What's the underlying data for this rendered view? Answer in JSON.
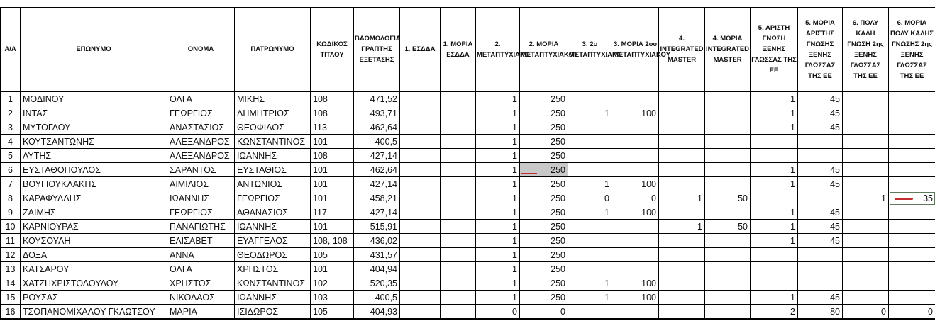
{
  "headers": [
    "Α/Α",
    "ΕΠΩΝΥΜΟ",
    "ΟΝΟΜΑ",
    "ΠΑΤΡΩΝΥΜΟ",
    "ΚΩΔΙΚΟΣ ΤΙΤΛΟΥ",
    "ΒΑΘΜΟΛΟΓΙΑ ΓΡΑΠΤΗΣ ΕΞΕΤΑΣΗΣ",
    "1. ΕΣΔΔΑ",
    "1. ΜΟΡΙΑ ΕΣΔΔΑ",
    "2. ΜΕΤΑΠΤΥΧΙΑΚΟ",
    "2. ΜΟΡΙΑ ΜΕΤΑΠΤΥΧΙΑΚΟΥ",
    "3. 2ο ΜΕΤΑΠΤΥΧΙΑΚΟ",
    "3. ΜΟΡΙΑ 2ου ΜΕΤΑΠΤΥΧΙΑΚΟΥ",
    "4. INTEGRATED MASTER",
    "4. ΜΟΡΙΑ INTEGRATED MASTER",
    "5. ΑΡΙΣΤΗ ΓΝΩΣΗ ΞΕΝΗΣ ΓΛΩΣΣΑΣ ΤΗΣ ΕΕ",
    "5. ΜΟΡΙΑ ΑΡΙΣΤΗΣ ΓΝΩΣΗΣ ΞΕΝΗΣ ΓΛΩΣΣΑΣ ΤΗΣ ΕΕ",
    "6. ΠΟΛΥ ΚΑΛΗ ΓΝΩΣΗ 2ης ΞΕΝΗΣ ΓΛΩΣΣΑΣ ΤΗΣ ΕΕ",
    "6. ΜΟΡΙΑ ΠΟΛΥ ΚΑΛΗΣ ΓΝΩΣΗΣ 2ης ΞΕΝΗΣ ΓΛΩΣΣΑΣ ΤΗΣ ΕΕ"
  ],
  "accent_colors": {
    "red_mark": "#c0302f",
    "highlight_cell": "#c8c8c8"
  },
  "rows": [
    [
      "1",
      "ΜΟΔΙΝΟΥ",
      "ΟΛΓΑ",
      "ΜΙΚΗΣ",
      "108",
      "471,52",
      "",
      "",
      "1",
      "250",
      "",
      "",
      "",
      "",
      "1",
      "45",
      "",
      ""
    ],
    [
      "2",
      "ΙΝΤΑΣ",
      "ΓΕΩΡΓΙΟΣ",
      "ΔΗΜΗΤΡΙΟΣ",
      "108",
      "493,71",
      "",
      "",
      "1",
      "250",
      "1",
      "100",
      "",
      "",
      "1",
      "45",
      "",
      ""
    ],
    [
      "3",
      "ΜΥΤΟΓΛΟΥ",
      "ΑΝΑΣΤΑΣΙΟΣ",
      "ΘΕΟΦΙΛΟΣ",
      "113",
      "462,64",
      "",
      "",
      "1",
      "250",
      "",
      "",
      "",
      "",
      "1",
      "45",
      "",
      ""
    ],
    [
      "4",
      "ΚΟΥΤΣΑΝΤΩΝΗΣ",
      "ΑΛΕΞΑΝΔΡΟΣ",
      "ΚΩΝΣΤΑΝΤΙΝΟΣ",
      "101",
      "400,5",
      "",
      "",
      "1",
      "250",
      "",
      "",
      "",
      "",
      "",
      "",
      "",
      ""
    ],
    [
      "5",
      "ΛΥΤΗΣ",
      "ΑΛΕΞΑΝΔΡΟΣ",
      "ΙΩΑΝΝΗΣ",
      "108",
      "427,14",
      "",
      "",
      "1",
      "250",
      "",
      "",
      "",
      "",
      "",
      "",
      "",
      ""
    ],
    [
      "6",
      "ΕΥΣΤΑΘΟΠΟΥΛΟΣ",
      "ΣΑΡΑΝΤΟΣ",
      "ΕΥΣΤΑΘΙΟΣ",
      "101",
      "462,64",
      "",
      "",
      "1",
      "250",
      "",
      "",
      "",
      "",
      "1",
      "45",
      "",
      ""
    ],
    [
      "7",
      "ΒΟΥΓΙΟΥΚΛΑΚΗΣ",
      "ΑΙΜΙΛΙΟΣ",
      "ΑΝΤΩΝΙΟΣ",
      "101",
      "427,14",
      "",
      "",
      "1",
      "250",
      "1",
      "100",
      "",
      "",
      "1",
      "45",
      "",
      ""
    ],
    [
      "8",
      "ΚΑΡΑΦΥΛΛΗΣ",
      "ΙΩΑΝΝΗΣ",
      "ΓΕΩΡΓΙΟΣ",
      "101",
      "458,21",
      "",
      "",
      "1",
      "250",
      "0",
      "0",
      "1",
      "50",
      "",
      "",
      "1",
      "35"
    ],
    [
      "9",
      "ΖΑΙΜΗΣ",
      "ΓΕΩΡΓΙΟΣ",
      "ΑΘΑΝΑΣΙΟΣ",
      "117",
      "427,14",
      "",
      "",
      "1",
      "250",
      "1",
      "100",
      "",
      "",
      "1",
      "45",
      "",
      ""
    ],
    [
      "10",
      "ΚΑΡΝΙΟΥΡΑΣ",
      "ΠΑΝΑΓΙΩΤΗΣ",
      "ΙΩΑΝΝΗΣ",
      "101",
      "515,91",
      "",
      "",
      "1",
      "250",
      "",
      "",
      "1",
      "50",
      "1",
      "45",
      "",
      ""
    ],
    [
      "11",
      "ΚΟΥΣΟΥΛΗ",
      "ΕΛΙΣΑΒΕΤ",
      "ΕΥΑΓΓΕΛΟΣ",
      "108, 108",
      "436,02",
      "",
      "",
      "1",
      "250",
      "",
      "",
      "",
      "",
      "1",
      "45",
      "",
      ""
    ],
    [
      "12",
      "ΔΟΞΑ",
      "ΑΝΝΑ",
      "ΘΕΟΔΩΡΟΣ",
      "105",
      "431,57",
      "",
      "",
      "1",
      "250",
      "",
      "",
      "",
      "",
      "",
      "",
      "",
      ""
    ],
    [
      "13",
      "ΚΑΤΣΑΡΟΥ",
      "ΟΛΓΑ",
      "ΧΡΗΣΤΟΣ",
      "101",
      "404,94",
      "",
      "",
      "1",
      "250",
      "",
      "",
      "",
      "",
      "",
      "",
      "",
      ""
    ],
    [
      "14",
      "ΧΑΤΖΗΧΡΙΣΤΟΔΟΥΛΟΥ",
      "ΧΡΗΣΤΟΣ",
      "ΚΩΝΣΤΑΝΤΙΝΟΣ",
      "102",
      "520,35",
      "",
      "",
      "1",
      "250",
      "1",
      "100",
      "",
      "",
      "",
      "",
      "",
      ""
    ],
    [
      "15",
      "ΡΟΥΣΑΣ",
      "ΝΙΚΟΛΑΟΣ",
      "ΙΩΑΝΝΗΣ",
      "103",
      "400,5",
      "",
      "",
      "1",
      "250",
      "1",
      "100",
      "",
      "",
      "1",
      "45",
      "",
      ""
    ],
    [
      "16",
      "ΤΣΟΠΑΝΟΜΙΧΑΛΟΥ ΓΚΛΩΤΣΟΥ",
      "ΜΑΡΙΑ",
      "ΙΣΙΔΩΡΟΣ",
      "105",
      "404,93",
      "",
      "",
      "0",
      "0",
      "",
      "",
      "",
      "",
      "2",
      "80",
      "0",
      "0"
    ]
  ]
}
